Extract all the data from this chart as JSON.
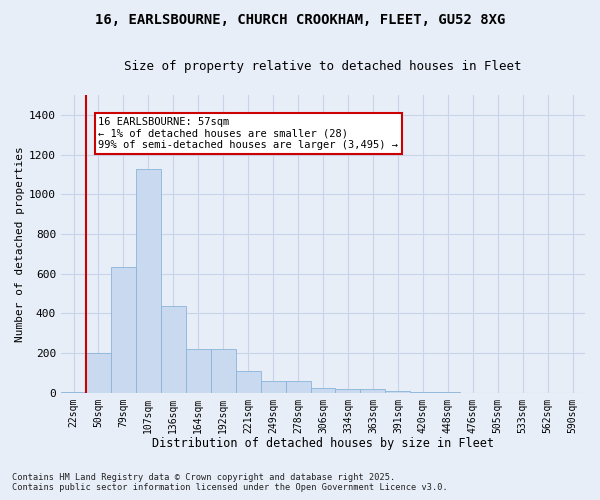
{
  "title_line1": "16, EARLSBOURNE, CHURCH CROOKHAM, FLEET, GU52 8XG",
  "title_line2": "Size of property relative to detached houses in Fleet",
  "xlabel": "Distribution of detached houses by size in Fleet",
  "ylabel": "Number of detached properties",
  "categories": [
    "22sqm",
    "50sqm",
    "79sqm",
    "107sqm",
    "136sqm",
    "164sqm",
    "192sqm",
    "221sqm",
    "249sqm",
    "278sqm",
    "306sqm",
    "334sqm",
    "363sqm",
    "391sqm",
    "420sqm",
    "448sqm",
    "476sqm",
    "505sqm",
    "533sqm",
    "562sqm",
    "590sqm"
  ],
  "values": [
    5,
    200,
    635,
    1125,
    435,
    220,
    220,
    110,
    60,
    60,
    25,
    20,
    20,
    10,
    5,
    3,
    1,
    0,
    0,
    0,
    0
  ],
  "bar_color": "#c9d9ef",
  "bar_edge_color": "#8ab4d8",
  "annotation_line1": "16 EARLSBOURNE: 57sqm",
  "annotation_line2": "← 1% of detached houses are smaller (28)",
  "annotation_line3": "99% of semi-detached houses are larger (3,495) →",
  "annotation_box_facecolor": "#ffffff",
  "annotation_box_edgecolor": "#cc0000",
  "grid_color": "#c8d4e8",
  "background_color": "#e8eef8",
  "ylim": [
    0,
    1500
  ],
  "yticks": [
    0,
    200,
    400,
    600,
    800,
    1000,
    1200,
    1400
  ],
  "footer_line1": "Contains HM Land Registry data © Crown copyright and database right 2025.",
  "footer_line2": "Contains public sector information licensed under the Open Government Licence v3.0.",
  "red_line_index": 1
}
